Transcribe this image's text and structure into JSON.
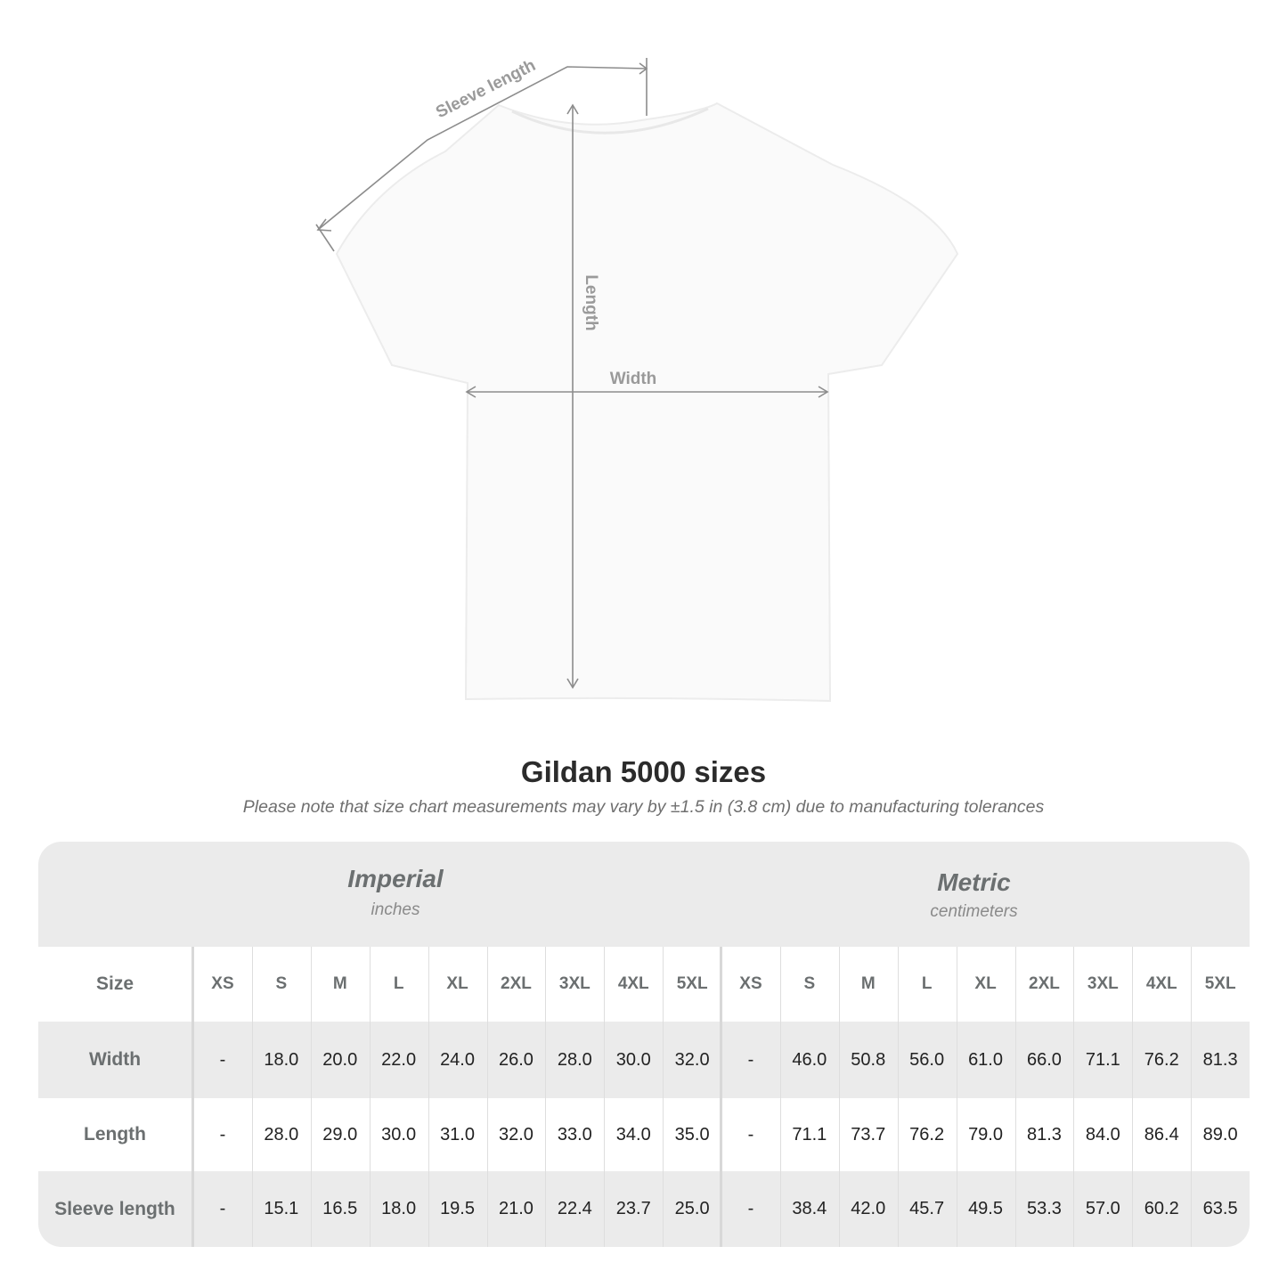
{
  "diagram": {
    "labels": {
      "sleeve_length": "Sleeve length",
      "length": "Length",
      "width": "Width"
    },
    "colors": {
      "arrow": "#8c8c8c",
      "label": "#9a9a9a"
    }
  },
  "title": "Gildan 5000 sizes",
  "subtitle": "Please note that size chart measurements may vary by ±1.5 in (3.8 cm) due to manufacturing tolerances",
  "table": {
    "imperial": {
      "name": "Imperial",
      "unit": "inches"
    },
    "metric": {
      "name": "Metric",
      "unit": "centimeters"
    },
    "size_label": "Size",
    "sizes": [
      "XS",
      "S",
      "M",
      "L",
      "XL",
      "2XL",
      "3XL",
      "4XL",
      "5XL"
    ],
    "rows": [
      {
        "label": "Width",
        "imperial": [
          "-",
          "18.0",
          "20.0",
          "22.0",
          "24.0",
          "26.0",
          "28.0",
          "30.0",
          "32.0"
        ],
        "metric": [
          "-",
          "46.0",
          "50.8",
          "56.0",
          "61.0",
          "66.0",
          "71.1",
          "76.2",
          "81.3"
        ]
      },
      {
        "label": "Length",
        "imperial": [
          "-",
          "28.0",
          "29.0",
          "30.0",
          "31.0",
          "32.0",
          "33.0",
          "34.0",
          "35.0"
        ],
        "metric": [
          "-",
          "71.1",
          "73.7",
          "76.2",
          "79.0",
          "81.3",
          "84.0",
          "86.4",
          "89.0"
        ]
      },
      {
        "label": "Sleeve length",
        "imperial": [
          "-",
          "15.1",
          "16.5",
          "18.0",
          "19.5",
          "21.0",
          "22.4",
          "23.7",
          "25.0"
        ],
        "metric": [
          "-",
          "38.4",
          "42.0",
          "45.7",
          "49.5",
          "53.3",
          "57.0",
          "60.2",
          "63.5"
        ]
      }
    ]
  }
}
